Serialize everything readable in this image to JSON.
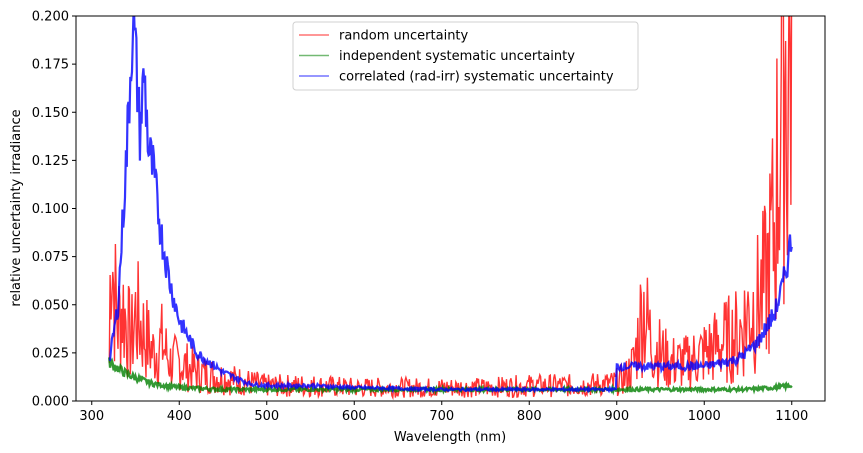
{
  "chart_data": {
    "type": "line",
    "title": "",
    "xlabel": "Wavelength (nm)",
    "ylabel": "relative uncertainty irradiance",
    "xlim": [
      282,
      1138
    ],
    "ylim": [
      0,
      0.2
    ],
    "xticks": [
      300,
      400,
      500,
      600,
      700,
      800,
      900,
      1000,
      1100
    ],
    "xtick_labels": [
      "300",
      "400",
      "500",
      "600",
      "700",
      "800",
      "900",
      "1000",
      "1100"
    ],
    "yticks": [
      0,
      0.025,
      0.05,
      0.075,
      0.1,
      0.125,
      0.15,
      0.175,
      0.2
    ],
    "ytick_labels": [
      "0.000",
      "0.025",
      "0.050",
      "0.075",
      "0.100",
      "0.125",
      "0.150",
      "0.175",
      "0.200"
    ],
    "grid": false,
    "legend_position": "upper center",
    "series": [
      {
        "name": "random uncertainty",
        "color": "#ff0000",
        "x": [
          320,
          322,
          325,
          330,
          335,
          340,
          345,
          350,
          360,
          370,
          380,
          390,
          400,
          420,
          450,
          500,
          550,
          600,
          650,
          700,
          750,
          800,
          850,
          895,
          900,
          910,
          920,
          930,
          935,
          940,
          950,
          960,
          980,
          1000,
          1020,
          1040,
          1050,
          1060,
          1070,
          1080,
          1085,
          1090,
          1095,
          1100
        ],
        "y": [
          0.02,
          0.1,
          0.06,
          0.04,
          0.05,
          0.04,
          0.03,
          0.045,
          0.035,
          0.025,
          0.03,
          0.02,
          0.02,
          0.015,
          0.012,
          0.008,
          0.008,
          0.007,
          0.007,
          0.007,
          0.007,
          0.008,
          0.008,
          0.009,
          0.01,
          0.012,
          0.02,
          0.05,
          0.04,
          0.03,
          0.025,
          0.02,
          0.02,
          0.025,
          0.03,
          0.035,
          0.045,
          0.05,
          0.06,
          0.09,
          0.13,
          0.2,
          0.16,
          0.2
        ]
      },
      {
        "name": "independent systematic uncertainty",
        "color": "#008000",
        "x": [
          320,
          330,
          340,
          350,
          370,
          400,
          450,
          500,
          600,
          700,
          800,
          900,
          1000,
          1050,
          1080,
          1100
        ],
        "y": [
          0.02,
          0.017,
          0.014,
          0.012,
          0.009,
          0.007,
          0.006,
          0.006,
          0.006,
          0.006,
          0.006,
          0.006,
          0.006,
          0.006,
          0.007,
          0.008
        ]
      },
      {
        "name": "correlated (rad-irr) systematic uncertainty",
        "color": "#0000ff",
        "x": [
          320,
          330,
          340,
          347,
          350,
          355,
          360,
          365,
          370,
          380,
          390,
          400,
          420,
          450,
          480,
          500,
          550,
          600,
          700,
          800,
          899,
          900,
          950,
          1000,
          1040,
          1060,
          1080,
          1090,
          1100
        ],
        "y": [
          0.02,
          0.05,
          0.13,
          0.2,
          0.18,
          0.14,
          0.17,
          0.13,
          0.12,
          0.085,
          0.06,
          0.042,
          0.025,
          0.015,
          0.009,
          0.008,
          0.008,
          0.007,
          0.006,
          0.006,
          0.006,
          0.018,
          0.018,
          0.018,
          0.022,
          0.03,
          0.045,
          0.06,
          0.085
        ]
      }
    ]
  }
}
